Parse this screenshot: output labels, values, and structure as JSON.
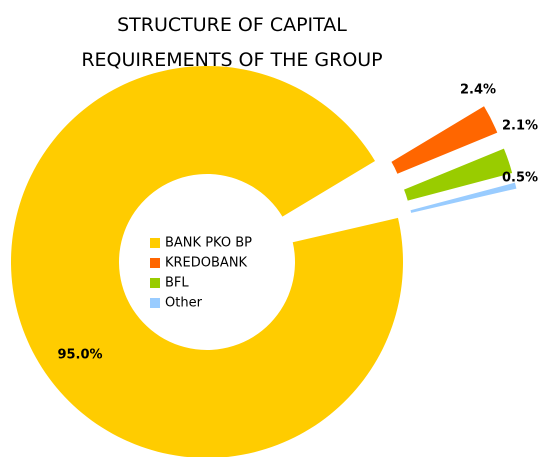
{
  "chart_data": {
    "type": "donut",
    "title": "STRUCTURE OF CAPITAL REQUIREMENTS OF THE GROUP",
    "categories": [
      "BANK PKO BP",
      "KREDOBANK",
      "BFL",
      "Other"
    ],
    "values": [
      95.0,
      2.4,
      2.1,
      0.5
    ],
    "value_labels": [
      "95.0%",
      "2.4%",
      "2.1%",
      "0.5%"
    ],
    "colors": [
      "#FFCC00",
      "#FF6600",
      "#99CC00",
      "#99CCFF"
    ],
    "legend": "center"
  }
}
